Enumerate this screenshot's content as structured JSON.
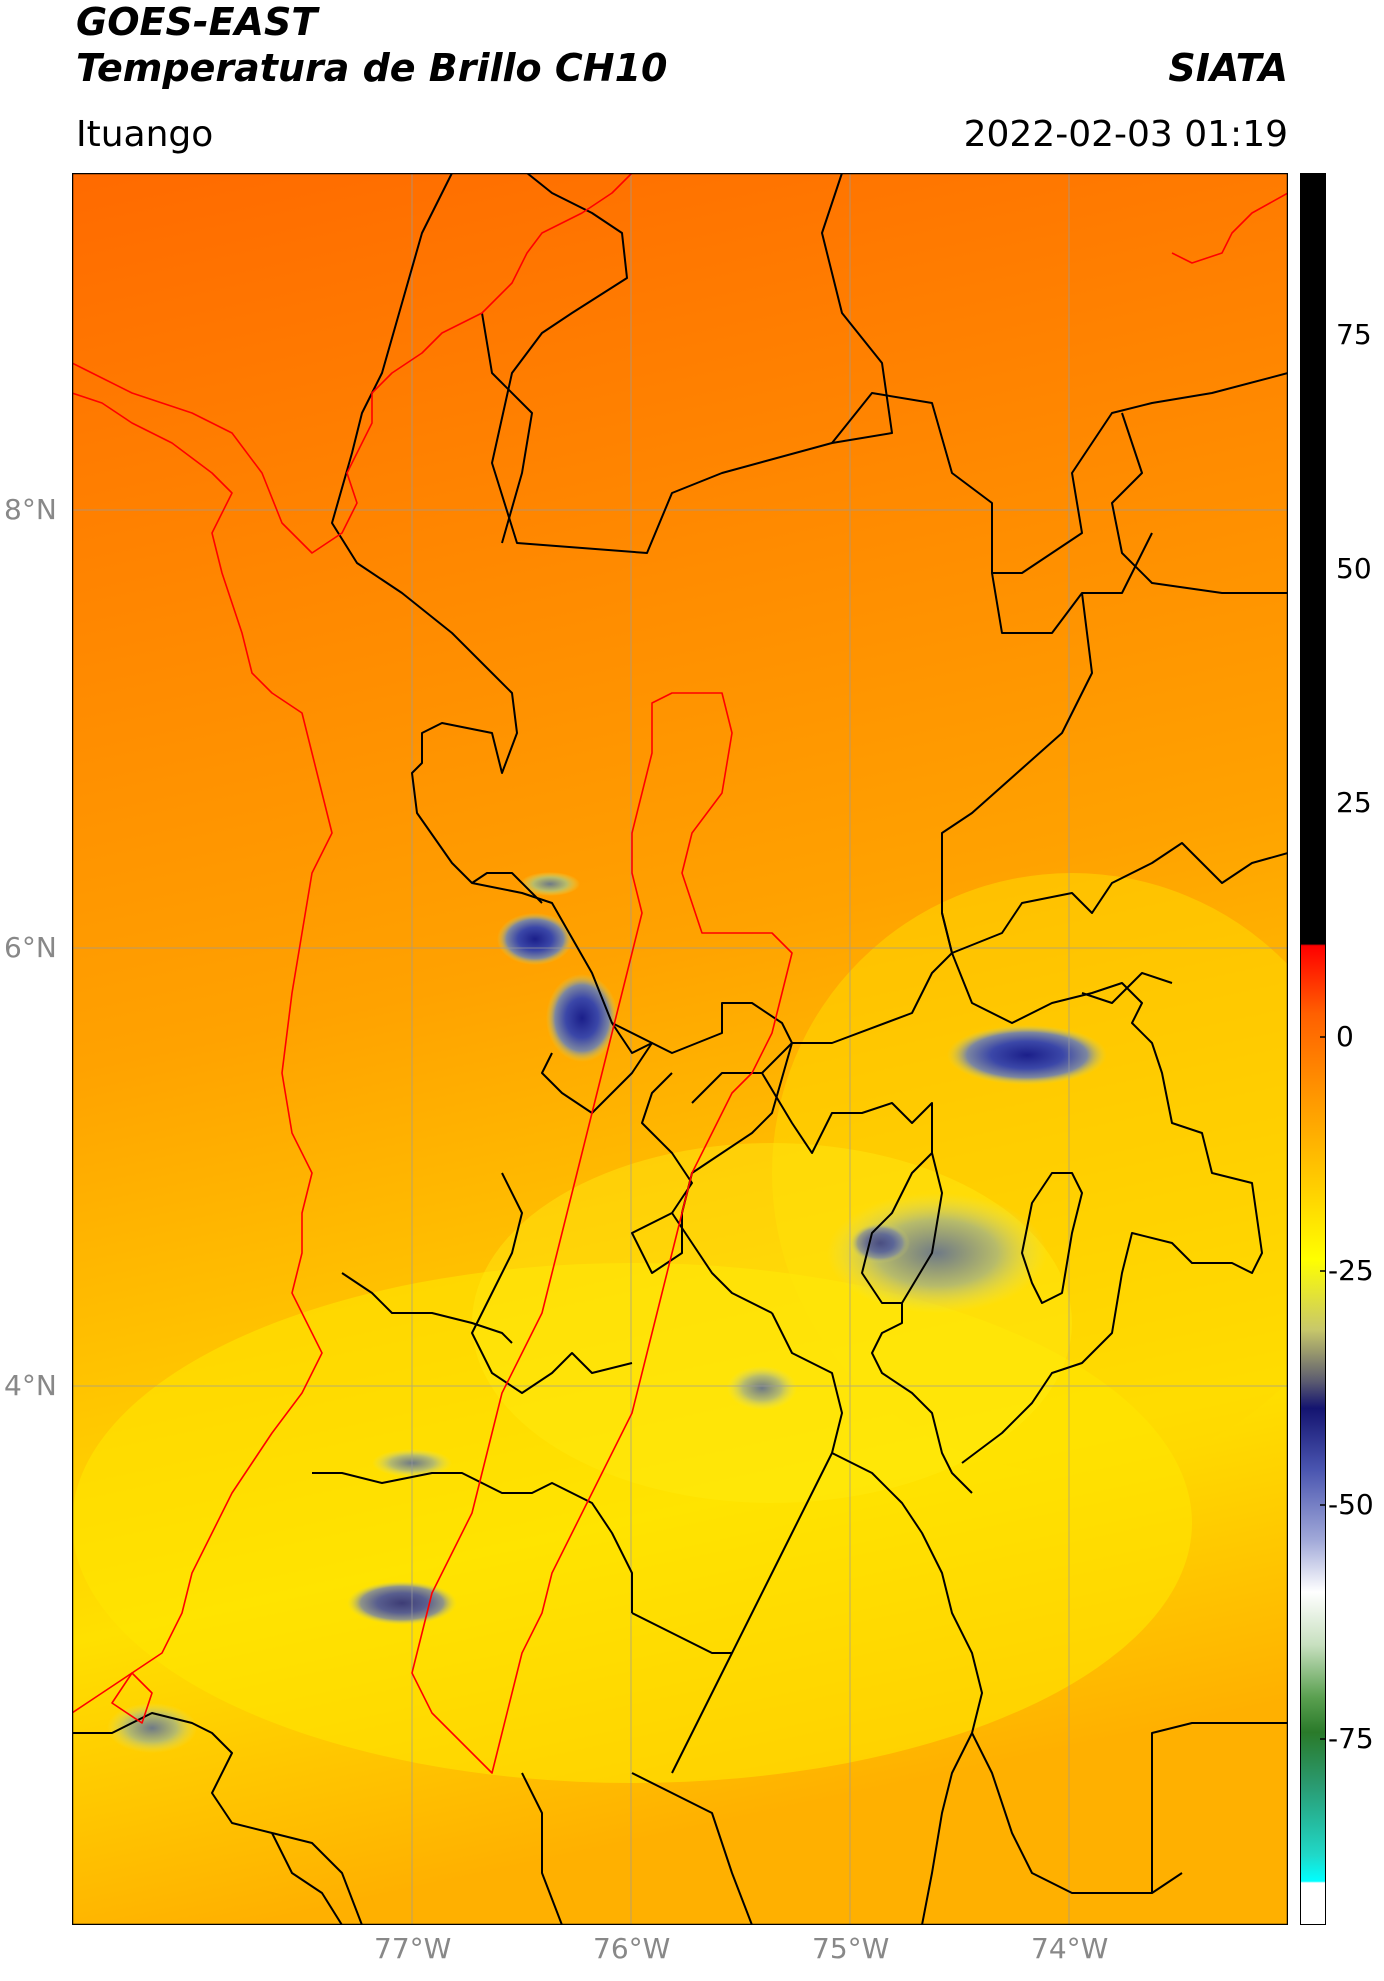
{
  "header": {
    "satellite": "GOES-EAST",
    "product": "Temperatura de Brillo CH10",
    "org": "SIATA",
    "region": "Ituango",
    "datetime": "2022-02-03 01:19"
  },
  "map": {
    "lon_range": [
      -78.55,
      -73.0
    ],
    "lat_range": [
      1.9,
      9.55
    ],
    "lon_ticks": [
      {
        "value": -77,
        "label": "77°W"
      },
      {
        "value": -76,
        "label": "76°W"
      },
      {
        "value": -75,
        "label": "75°W"
      },
      {
        "value": -74,
        "label": "74°W"
      }
    ],
    "lat_ticks": [
      {
        "value": 8,
        "label": "8°N"
      },
      {
        "value": 6,
        "label": "6°N"
      },
      {
        "value": 4,
        "label": "4°N"
      }
    ],
    "colors": {
      "warm": "#ff6a00",
      "mid": "#ffa500",
      "cool": "#ffe600",
      "cold": "#1b1f8a",
      "boundary_department": "#000000",
      "boundary_coast": "#ff0000"
    }
  },
  "colorbar": {
    "range": [
      -95,
      92
    ],
    "labels": [
      {
        "value": 75,
        "label": "75"
      },
      {
        "value": 50,
        "label": "50"
      },
      {
        "value": 25,
        "label": "25"
      },
      {
        "value": 0,
        "label": "0"
      },
      {
        "value": -25,
        "label": "-25"
      },
      {
        "value": -50,
        "label": "-50"
      },
      {
        "value": -75,
        "label": "-75"
      }
    ]
  }
}
